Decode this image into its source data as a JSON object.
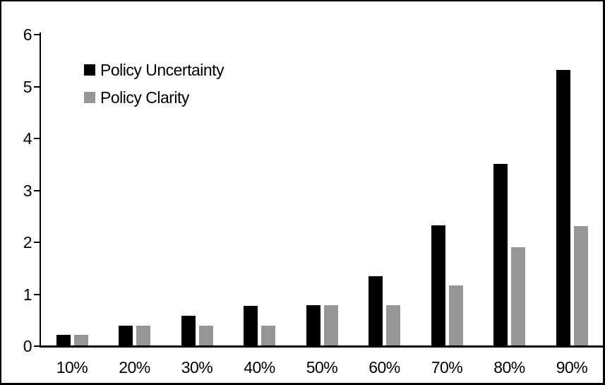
{
  "chart_data": {
    "type": "bar",
    "title": "",
    "xlabel": "",
    "ylabel": "",
    "categories": [
      "10%",
      "20%",
      "30%",
      "40%",
      "50%",
      "60%",
      "70%",
      "80%",
      "90%"
    ],
    "series": [
      {
        "name": "Policy Uncertainty",
        "color": "#000000",
        "values": [
          0.2,
          0.38,
          0.57,
          0.76,
          0.78,
          1.33,
          2.31,
          3.5,
          5.31
        ]
      },
      {
        "name": "Policy Clarity",
        "color": "#969696",
        "values": [
          0.2,
          0.38,
          0.38,
          0.38,
          0.77,
          0.78,
          1.15,
          1.89,
          2.3
        ]
      }
    ],
    "ylim": [
      0,
      6
    ],
    "yticks": [
      0,
      1,
      2,
      3,
      4,
      5,
      6
    ],
    "grid": false,
    "legend_position": "inside-top-left",
    "frame_border_color": "#000000",
    "background_color": "#ffffff"
  }
}
